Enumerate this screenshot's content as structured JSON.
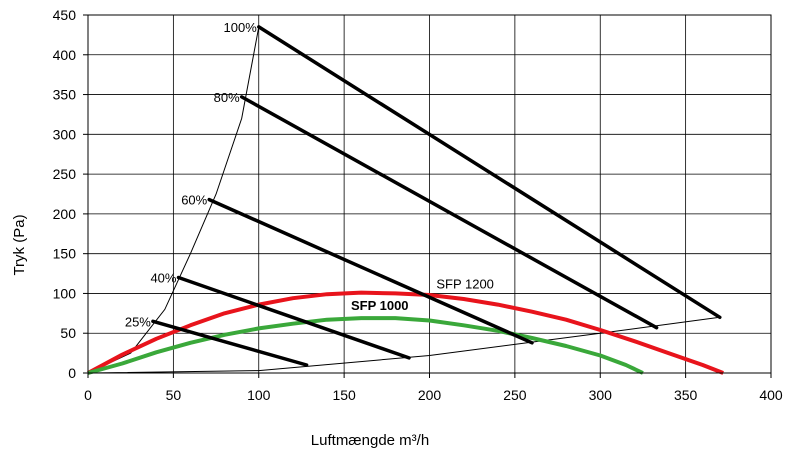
{
  "chart_data": {
    "type": "line",
    "xlabel": "Luftmængde m³/h",
    "ylabel": "Tryk (Pa)",
    "xlim": [
      0,
      400
    ],
    "ylim": [
      0,
      450
    ],
    "x_ticks": [
      "0",
      "50",
      "100",
      "150",
      "200",
      "250",
      "300",
      "350",
      "400"
    ],
    "y_ticks": [
      "0",
      "50",
      "100",
      "150",
      "200",
      "250",
      "300",
      "350",
      "400",
      "450"
    ],
    "grid": true,
    "fan_curves": [
      {
        "label": "100%",
        "points": [
          [
            100,
            435
          ],
          [
            370,
            70
          ]
        ]
      },
      {
        "label": "80%",
        "points": [
          [
            90,
            347
          ],
          [
            333,
            57
          ]
        ]
      },
      {
        "label": "60%",
        "points": [
          [
            71,
            218
          ],
          [
            260,
            38
          ]
        ]
      },
      {
        "label": "40%",
        "points": [
          [
            53,
            120
          ],
          [
            188,
            19
          ]
        ]
      },
      {
        "label": "25%",
        "points": [
          [
            38,
            65
          ],
          [
            128,
            10
          ]
        ]
      }
    ],
    "max_boundary_points": [
      [
        0,
        0
      ],
      [
        25,
        25
      ],
      [
        45,
        80
      ],
      [
        60,
        150
      ],
      [
        75,
        225
      ],
      [
        90,
        320
      ],
      [
        100,
        435
      ]
    ],
    "min_boundary_points": [
      [
        0,
        0
      ],
      [
        100,
        3
      ],
      [
        200,
        22
      ],
      [
        300,
        50
      ],
      [
        370,
        70
      ]
    ],
    "sfp_curves": [
      {
        "name": "SFP 1200",
        "color": "#e8141c",
        "points": [
          [
            0,
            0
          ],
          [
            20,
            23
          ],
          [
            40,
            43
          ],
          [
            60,
            60
          ],
          [
            80,
            75
          ],
          [
            100,
            86
          ],
          [
            120,
            94
          ],
          [
            140,
            99
          ],
          [
            160,
            101
          ],
          [
            180,
            100
          ],
          [
            200,
            98
          ],
          [
            220,
            93
          ],
          [
            240,
            86
          ],
          [
            260,
            77
          ],
          [
            280,
            67
          ],
          [
            300,
            54
          ],
          [
            320,
            40
          ],
          [
            340,
            25
          ],
          [
            360,
            10
          ],
          [
            372,
            0
          ]
        ]
      },
      {
        "name": "SFP 1000",
        "color": "#3aa83a",
        "points": [
          [
            0,
            0
          ],
          [
            20,
            12
          ],
          [
            40,
            26
          ],
          [
            60,
            38
          ],
          [
            80,
            48
          ],
          [
            100,
            56
          ],
          [
            120,
            62
          ],
          [
            140,
            67
          ],
          [
            160,
            69
          ],
          [
            180,
            69
          ],
          [
            200,
            66
          ],
          [
            220,
            60
          ],
          [
            240,
            53
          ],
          [
            260,
            44
          ],
          [
            280,
            34
          ],
          [
            300,
            22
          ],
          [
            315,
            10
          ],
          [
            325,
            0
          ]
        ]
      }
    ],
    "annotations": [
      {
        "text": "SFP 1200",
        "x": 204,
        "y": 106,
        "bold": false
      },
      {
        "text": "SFP 1000",
        "x": 154,
        "y": 79,
        "bold": true
      }
    ]
  }
}
